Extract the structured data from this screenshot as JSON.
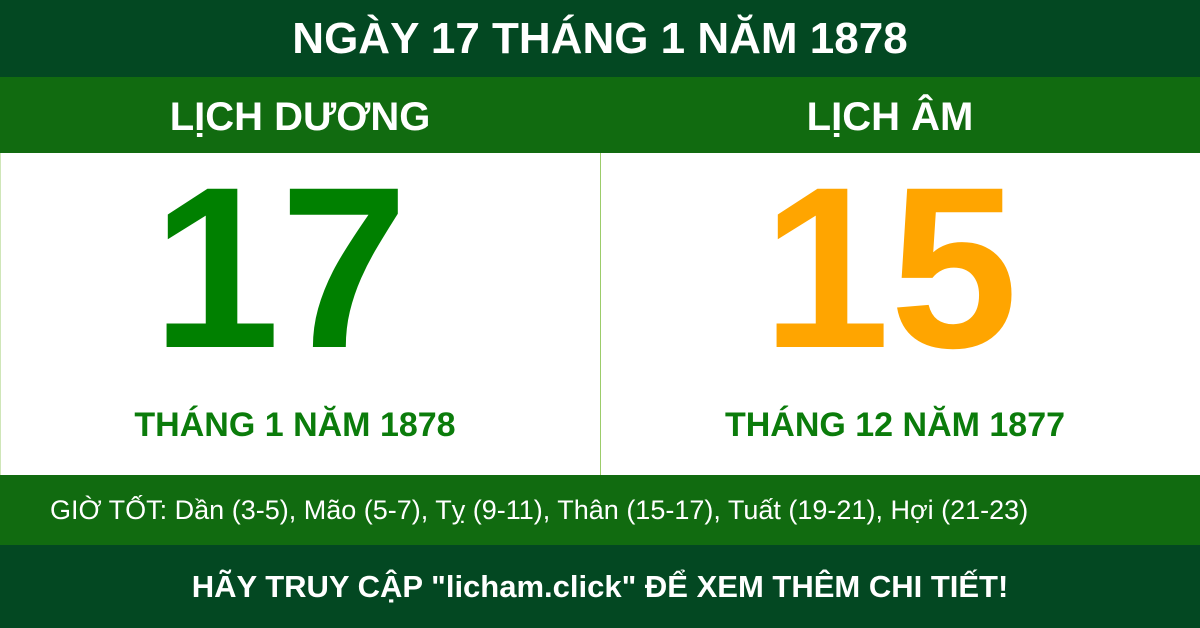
{
  "title": "NGÀY 17 THÁNG 1 NĂM 1878",
  "solar": {
    "label": "LỊCH DƯƠNG",
    "day": "17",
    "month_year": "THÁNG 1 NĂM 1878"
  },
  "lunar": {
    "label": "LỊCH ÂM",
    "day": "15",
    "month_year": "THÁNG 12 NĂM 1877"
  },
  "good_hours": "GIỜ TỐT: Dần (3-5), Mão (5-7), Tỵ (9-11), Thân (15-17), Tuất (19-21), Hợi (21-23)",
  "footer": "HÃY TRUY CẬP \"licham.click\" ĐỂ XEM THÊM CHI TIẾT!",
  "colors": {
    "dark_green": "#034822",
    "green": "#116b10",
    "solar_number": "#008000",
    "lunar_number": "#ffa500"
  }
}
